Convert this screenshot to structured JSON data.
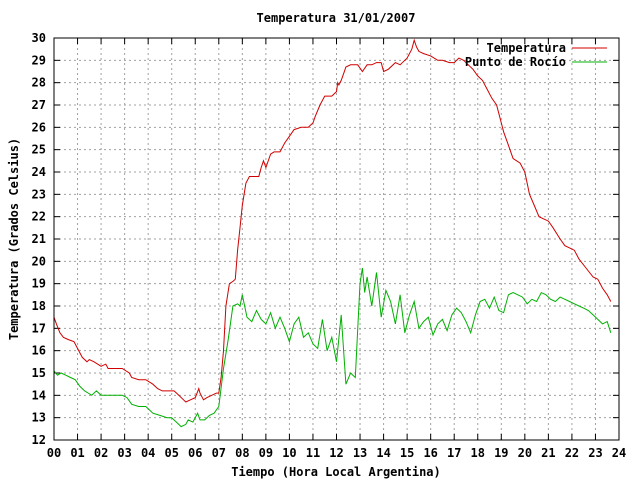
{
  "chart_data": {
    "type": "line",
    "title": "Temperatura 31/01/2007",
    "xlabel": "Tiempo (Hora Local Argentina)",
    "ylabel": "Temperatura (Grados Celsius)",
    "xlim": [
      0,
      24
    ],
    "ylim": [
      12,
      30
    ],
    "x_ticks": [
      "00",
      "01",
      "02",
      "03",
      "04",
      "05",
      "06",
      "07",
      "08",
      "09",
      "10",
      "11",
      "12",
      "13",
      "14",
      "15",
      "16",
      "17",
      "18",
      "19",
      "20",
      "21",
      "22",
      "23",
      "24"
    ],
    "y_ticks": [
      12,
      13,
      14,
      15,
      16,
      17,
      18,
      19,
      20,
      21,
      22,
      23,
      24,
      25,
      26,
      27,
      28,
      29,
      30
    ],
    "grid": true,
    "legend_position": "top-right",
    "series": [
      {
        "name": "Temperatura",
        "color": "#d00000",
        "x": [
          0,
          0.1,
          0.25,
          0.4,
          0.6,
          0.85,
          1.0,
          1.2,
          1.4,
          1.5,
          1.7,
          2.0,
          2.2,
          2.3,
          2.6,
          2.9,
          3.2,
          3.3,
          3.6,
          3.9,
          4.2,
          4.4,
          4.6,
          4.9,
          5.1,
          5.3,
          5.5,
          5.6,
          5.8,
          6.0,
          6.15,
          6.2,
          6.35,
          6.5,
          6.7,
          6.9,
          7.0,
          7.1,
          7.2,
          7.3,
          7.45,
          7.6,
          7.7,
          7.8,
          7.9,
          8.0,
          8.15,
          8.3,
          8.5,
          8.7,
          8.8,
          8.9,
          9.0,
          9.2,
          9.35,
          9.6,
          9.8,
          10.0,
          10.2,
          10.5,
          10.8,
          11.0,
          11.1,
          11.3,
          11.5,
          11.8,
          12.0,
          12.05,
          12.1,
          12.2,
          12.3,
          12.4,
          12.6,
          12.9,
          13.1,
          13.3,
          13.5,
          13.7,
          13.9,
          14.0,
          14.2,
          14.5,
          14.7,
          14.9,
          15.0,
          15.2,
          15.3,
          15.4,
          15.5,
          15.7,
          16.0,
          16.3,
          16.5,
          16.8,
          17.0,
          17.2,
          17.4,
          17.6,
          17.8,
          18.0,
          18.2,
          18.4,
          18.6,
          18.8,
          19.0,
          19.1,
          19.3,
          19.5,
          19.8,
          20.0,
          20.2,
          20.4,
          20.6,
          20.8,
          21.0,
          21.2,
          21.5,
          21.7,
          21.9,
          22.1,
          22.3,
          22.6,
          22.9,
          23.1,
          23.3,
          23.5,
          23.65
        ],
        "values": [
          17.5,
          17.2,
          16.8,
          16.6,
          16.5,
          16.4,
          16.1,
          15.7,
          15.5,
          15.6,
          15.5,
          15.3,
          15.4,
          15.2,
          15.2,
          15.2,
          15.0,
          14.8,
          14.7,
          14.7,
          14.5,
          14.3,
          14.2,
          14.2,
          14.2,
          14.0,
          13.8,
          13.7,
          13.8,
          13.9,
          14.3,
          14.1,
          13.8,
          13.9,
          14.0,
          14.1,
          14.1,
          14.8,
          16.0,
          18.0,
          19.0,
          19.1,
          19.2,
          20.5,
          21.5,
          22.5,
          23.5,
          23.8,
          23.8,
          23.8,
          24.2,
          24.5,
          24.2,
          24.8,
          24.9,
          24.9,
          25.3,
          25.6,
          25.9,
          26.0,
          26.0,
          26.2,
          26.5,
          27.0,
          27.4,
          27.4,
          27.6,
          28.0,
          27.9,
          28.1,
          28.4,
          28.7,
          28.8,
          28.8,
          28.5,
          28.8,
          28.8,
          28.9,
          28.9,
          28.5,
          28.6,
          28.9,
          28.8,
          29.0,
          29.1,
          29.5,
          29.9,
          29.6,
          29.4,
          29.3,
          29.2,
          29.0,
          29.0,
          28.9,
          28.9,
          29.1,
          29.0,
          28.8,
          28.6,
          28.3,
          28.1,
          27.7,
          27.3,
          27.0,
          26.2,
          25.8,
          25.2,
          24.6,
          24.4,
          24.0,
          23.0,
          22.5,
          22.0,
          21.9,
          21.8,
          21.5,
          21.0,
          20.7,
          20.6,
          20.5,
          20.1,
          19.7,
          19.3,
          19.2,
          18.8,
          18.5,
          18.2
        ]
      },
      {
        "name": "Punto de Rocío",
        "color": "#00b000",
        "x": [
          0,
          0.15,
          0.3,
          0.5,
          0.7,
          0.9,
          1.1,
          1.3,
          1.6,
          1.8,
          2.0,
          2.3,
          2.6,
          2.9,
          3.1,
          3.3,
          3.6,
          3.9,
          4.2,
          4.5,
          4.8,
          5.0,
          5.2,
          5.4,
          5.6,
          5.7,
          5.9,
          6.1,
          6.2,
          6.4,
          6.6,
          6.8,
          7.0,
          7.2,
          7.4,
          7.6,
          7.8,
          7.9,
          8.0,
          8.2,
          8.4,
          8.6,
          8.8,
          9.0,
          9.2,
          9.4,
          9.6,
          9.8,
          10.0,
          10.2,
          10.4,
          10.6,
          10.8,
          11.0,
          11.2,
          11.4,
          11.6,
          11.8,
          12.0,
          12.2,
          12.4,
          12.6,
          12.8,
          13.0,
          13.1,
          13.2,
          13.3,
          13.5,
          13.7,
          13.9,
          14.1,
          14.3,
          14.5,
          14.7,
          14.9,
          15.1,
          15.3,
          15.5,
          15.7,
          15.9,
          16.1,
          16.3,
          16.5,
          16.7,
          16.9,
          17.1,
          17.3,
          17.5,
          17.7,
          17.9,
          18.1,
          18.3,
          18.5,
          18.7,
          18.9,
          19.1,
          19.3,
          19.5,
          19.7,
          19.9,
          20.1,
          20.3,
          20.5,
          20.7,
          20.9,
          21.1,
          21.3,
          21.5,
          21.7,
          21.9,
          22.1,
          22.3,
          22.5,
          22.7,
          22.9,
          23.1,
          23.3,
          23.5,
          23.65
        ],
        "values": [
          15.1,
          14.9,
          15.0,
          14.9,
          14.8,
          14.7,
          14.4,
          14.2,
          14.0,
          14.2,
          14.0,
          14.0,
          14.0,
          14.0,
          13.9,
          13.6,
          13.5,
          13.5,
          13.2,
          13.1,
          13.0,
          13.0,
          12.8,
          12.6,
          12.7,
          12.9,
          12.8,
          13.2,
          12.9,
          12.9,
          13.1,
          13.2,
          13.5,
          15.2,
          16.5,
          18.0,
          18.1,
          18.0,
          18.5,
          17.5,
          17.3,
          17.8,
          17.4,
          17.2,
          17.7,
          17.0,
          17.5,
          17.0,
          16.4,
          17.2,
          17.5,
          16.6,
          16.8,
          16.3,
          16.1,
          17.4,
          16.0,
          16.6,
          15.5,
          17.6,
          14.5,
          15.0,
          14.8,
          19.0,
          19.7,
          18.6,
          19.3,
          18.0,
          19.5,
          17.5,
          18.7,
          18.2,
          17.2,
          18.5,
          16.8,
          17.6,
          18.2,
          17.0,
          17.3,
          17.5,
          16.7,
          17.2,
          17.4,
          16.9,
          17.6,
          17.9,
          17.7,
          17.3,
          16.8,
          17.6,
          18.2,
          18.3,
          17.9,
          18.4,
          17.8,
          17.7,
          18.5,
          18.6,
          18.5,
          18.4,
          18.1,
          18.3,
          18.2,
          18.6,
          18.5,
          18.3,
          18.2,
          18.4,
          18.3,
          18.2,
          18.1,
          18.0,
          17.9,
          17.8,
          17.6,
          17.4,
          17.2,
          17.3,
          16.8
        ]
      }
    ]
  }
}
